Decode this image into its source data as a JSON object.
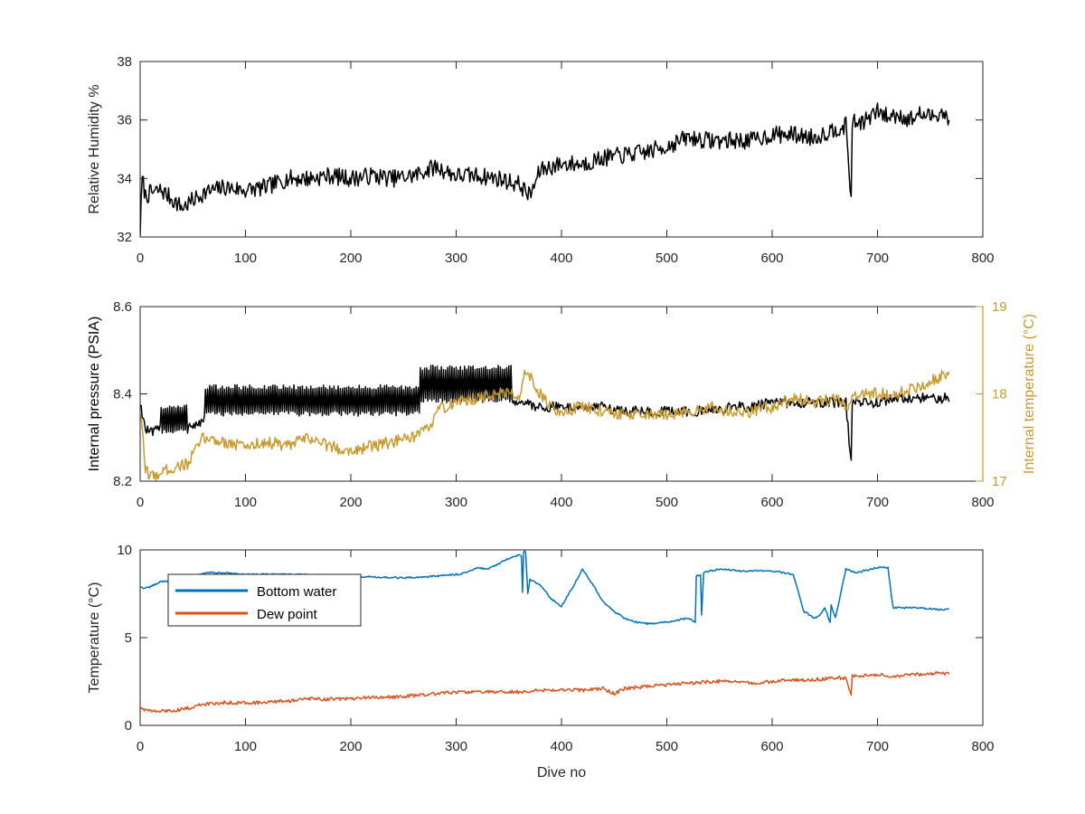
{
  "chart_data": [
    {
      "type": "line",
      "ylabel": "Relative Humidity %",
      "xlim": [
        0,
        800
      ],
      "ylim": [
        32,
        38
      ],
      "xticks": [
        0,
        100,
        200,
        300,
        400,
        500,
        600,
        700,
        800
      ],
      "yticks": [
        32,
        34,
        36,
        38
      ],
      "series": [
        {
          "color": "#000000",
          "noise": 0.3,
          "x": [
            0,
            2,
            5,
            10,
            20,
            40,
            60,
            80,
            100,
            120,
            140,
            160,
            180,
            200,
            220,
            240,
            260,
            280,
            300,
            320,
            340,
            360,
            370,
            380,
            400,
            420,
            440,
            460,
            480,
            500,
            520,
            540,
            560,
            580,
            600,
            620,
            640,
            660,
            670,
            675,
            676,
            680,
            690,
            700,
            710,
            720,
            730,
            740,
            750,
            760,
            768
          ],
          "y": [
            32.2,
            34.0,
            33.4,
            33.5,
            33.6,
            33.0,
            33.5,
            33.7,
            33.6,
            33.7,
            34.0,
            34.0,
            34.1,
            34.0,
            34.1,
            34.0,
            34.1,
            34.4,
            34.1,
            34.1,
            34.0,
            33.8,
            33.4,
            34.3,
            34.5,
            34.5,
            34.7,
            34.8,
            34.9,
            35.1,
            35.4,
            35.3,
            35.3,
            35.3,
            35.5,
            35.5,
            35.4,
            35.7,
            35.8,
            33.3,
            35.9,
            35.9,
            36.0,
            36.3,
            36.1,
            36.2,
            36.0,
            36.2,
            36.1,
            36.3,
            36.0
          ]
        }
      ]
    },
    {
      "type": "line",
      "ylabel": "Internal pressure (PSIA)",
      "y2label": "Internal temperature (°C)",
      "xlim": [
        0,
        800
      ],
      "ylim": [
        8.2,
        8.6
      ],
      "y2lim": [
        17,
        19
      ],
      "xticks": [
        0,
        100,
        200,
        300,
        400,
        500,
        600,
        700,
        800
      ],
      "yticks": [
        "8.2",
        "8.4",
        "8.6"
      ],
      "y2ticks": [
        "17",
        "18",
        "19"
      ],
      "y2color": "#C99A2E",
      "series": [
        {
          "color": "#000000",
          "axis": "left",
          "noise": 0.012,
          "osc": [
            {
              "from": 20,
              "to": 45,
              "lo": 8.315,
              "hi": 8.37
            },
            {
              "from": 62,
              "to": 265,
              "lo": 8.355,
              "hi": 8.415
            },
            {
              "from": 265,
              "to": 352,
              "lo": 8.385,
              "hi": 8.46
            }
          ],
          "x": [
            0,
            5,
            10,
            20,
            45,
            55,
            62,
            100,
            200,
            260,
            300,
            350,
            352,
            360,
            380,
            400,
            440,
            460,
            500,
            540,
            560,
            580,
            600,
            620,
            640,
            660,
            670,
            675,
            676,
            680,
            700,
            720,
            740,
            760,
            768
          ],
          "y": [
            8.38,
            8.32,
            8.31,
            8.32,
            8.33,
            8.33,
            8.34,
            8.34,
            8.34,
            8.35,
            8.37,
            8.39,
            8.39,
            8.38,
            8.37,
            8.37,
            8.37,
            8.36,
            8.36,
            8.36,
            8.37,
            8.37,
            8.38,
            8.38,
            8.38,
            8.38,
            8.38,
            8.24,
            8.38,
            8.38,
            8.38,
            8.39,
            8.39,
            8.39,
            8.39
          ]
        },
        {
          "color": "#C99A2E",
          "axis": "right",
          "noise": 0.07,
          "x": [
            0,
            5,
            10,
            20,
            30,
            45,
            55,
            60,
            80,
            100,
            120,
            140,
            160,
            180,
            200,
            220,
            240,
            260,
            275,
            280,
            300,
            320,
            340,
            355,
            360,
            365,
            375,
            380,
            390,
            400,
            420,
            440,
            460,
            480,
            500,
            520,
            540,
            560,
            580,
            600,
            620,
            640,
            660,
            670,
            680,
            700,
            720,
            740,
            750,
            760,
            765,
            768
          ],
          "y": [
            17.8,
            17.15,
            17.05,
            17.1,
            17.15,
            17.2,
            17.4,
            17.5,
            17.45,
            17.4,
            17.45,
            17.4,
            17.5,
            17.4,
            17.35,
            17.4,
            17.45,
            17.5,
            17.6,
            17.8,
            17.9,
            17.95,
            18.0,
            18.0,
            17.95,
            18.3,
            18.1,
            18.0,
            17.85,
            17.8,
            17.85,
            17.8,
            17.75,
            17.75,
            17.75,
            17.8,
            17.85,
            17.8,
            17.8,
            17.85,
            17.95,
            17.9,
            17.95,
            17.85,
            18.0,
            18.0,
            18.0,
            18.1,
            18.15,
            18.2,
            18.2,
            18.2
          ]
        }
      ]
    },
    {
      "type": "line",
      "ylabel": "Temperature (°C)",
      "xlabel": "Dive no",
      "xlim": [
        0,
        800
      ],
      "ylim": [
        0,
        10
      ],
      "xticks": [
        0,
        100,
        200,
        300,
        400,
        500,
        600,
        700,
        800
      ],
      "yticks": [
        0,
        5,
        10
      ],
      "legend_position": "top-left",
      "series": [
        {
          "name": "Bottom water",
          "color": "#0072BD",
          "noise": 0.05,
          "x": [
            0,
            5,
            10,
            20,
            40,
            50,
            60,
            80,
            100,
            150,
            200,
            250,
            280,
            300,
            310,
            320,
            330,
            340,
            350,
            360,
            362,
            363,
            364,
            365,
            366,
            368,
            370,
            380,
            390,
            400,
            410,
            420,
            430,
            440,
            450,
            460,
            470,
            480,
            490,
            500,
            510,
            520,
            527,
            528,
            532,
            533,
            535,
            540,
            550,
            570,
            580,
            600,
            620,
            630,
            640,
            645,
            650,
            655,
            656,
            660,
            665,
            670,
            680,
            700,
            710,
            713,
            715,
            720,
            740,
            760,
            768
          ],
          "y": [
            7.9,
            7.8,
            7.9,
            8.2,
            8.3,
            8.3,
            8.7,
            8.7,
            8.6,
            8.6,
            8.5,
            8.4,
            8.5,
            8.6,
            8.7,
            9.0,
            8.9,
            9.2,
            9.5,
            9.7,
            9.6,
            7.6,
            9.8,
            9.9,
            9.8,
            7.5,
            8.3,
            8.0,
            7.2,
            6.8,
            7.8,
            8.9,
            8.0,
            7.0,
            6.5,
            6.1,
            5.9,
            5.8,
            5.8,
            5.9,
            6.0,
            6.1,
            5.9,
            8.5,
            8.6,
            6.3,
            8.7,
            8.8,
            8.9,
            8.8,
            8.8,
            8.8,
            8.6,
            6.5,
            6.1,
            6.3,
            6.7,
            5.9,
            6.9,
            6.1,
            7.5,
            8.9,
            8.7,
            9.0,
            9.0,
            7.5,
            6.7,
            6.7,
            6.7,
            6.6,
            6.6
          ]
        },
        {
          "name": "Dew point",
          "color": "#D95319",
          "noise": 0.1,
          "x": [
            0,
            5,
            10,
            20,
            40,
            60,
            80,
            100,
            120,
            140,
            160,
            180,
            200,
            220,
            240,
            260,
            280,
            300,
            320,
            340,
            360,
            380,
            400,
            420,
            440,
            450,
            460,
            480,
            500,
            520,
            540,
            560,
            580,
            600,
            620,
            640,
            660,
            670,
            675,
            676,
            680,
            700,
            720,
            740,
            760,
            768
          ],
          "y": [
            1.0,
            0.9,
            0.8,
            0.8,
            0.9,
            1.2,
            1.3,
            1.3,
            1.3,
            1.4,
            1.5,
            1.5,
            1.5,
            1.6,
            1.6,
            1.7,
            1.8,
            1.9,
            1.9,
            1.9,
            1.9,
            2.0,
            2.0,
            2.0,
            2.1,
            1.8,
            2.1,
            2.2,
            2.3,
            2.4,
            2.5,
            2.5,
            2.4,
            2.5,
            2.6,
            2.6,
            2.7,
            2.7,
            1.7,
            2.8,
            2.8,
            2.9,
            2.8,
            2.9,
            3.0,
            2.9
          ]
        }
      ]
    }
  ]
}
